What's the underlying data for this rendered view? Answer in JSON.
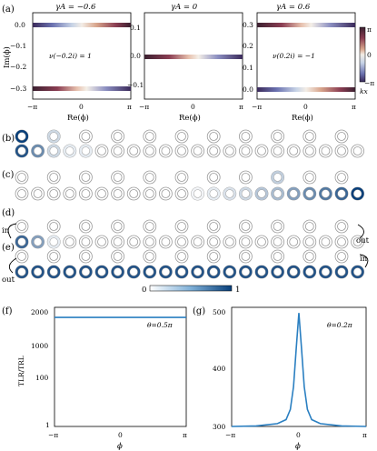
{
  "panel_labels": {
    "a": "(a)",
    "b": "(b)",
    "c": "(c)",
    "d": "(d)",
    "e": "(e)",
    "f": "(f)",
    "g": "(g)"
  },
  "panel_a": {
    "titles": [
      "γA = −0.6",
      "γA = 0",
      "γA = 0.6"
    ],
    "ylabel": "Im(ϕ)",
    "xlabel": "Re(ϕ)",
    "xticks": [
      "−π",
      "0",
      "π"
    ],
    "yticks_left": [
      "0.0",
      "−0.1",
      "−0.2",
      "−0.3"
    ],
    "yticks_mid": [
      "0.1",
      "0.0",
      "−0.1"
    ],
    "yticks_right": [
      "0.3",
      "0.2",
      "0.1",
      "0.0"
    ],
    "annot_left": "ν(−0.2i) = 1",
    "annot_right": "ν(0.2i) = −1",
    "cbar_ticks": [
      "π",
      "0",
      "−π"
    ],
    "cbar_label": "kx"
  },
  "panel_de": {
    "in": "in",
    "out": "out"
  },
  "colorbar_bottom": {
    "min": "0",
    "max": "1"
  },
  "panel_f": {
    "ylabel": "TLR/TRL",
    "yticks": [
      "2000",
      "1000",
      "100",
      "1"
    ],
    "xticks": [
      "−π",
      "0",
      "π"
    ],
    "xlabel": "ϕ",
    "annot": "θ=0.5π"
  },
  "panel_g": {
    "yticks": [
      "500",
      "400",
      "300"
    ],
    "xticks": [
      "−π",
      "0",
      "π"
    ],
    "xlabel": "ϕ",
    "annot": "θ=0.2π"
  },
  "chart_data": [
    {
      "type": "line",
      "title": "",
      "xlabel": "ϕ",
      "ylabel": "TLR/TRL",
      "x": [
        -3.1416,
        3.1416
      ],
      "series": [
        {
          "values": [
            1050,
            1050
          ]
        }
      ],
      "ylim": [
        1,
        2000
      ],
      "note": "constant 1050"
    },
    {
      "type": "line",
      "title": "",
      "xlabel": "ϕ",
      "ylabel": "",
      "x": [
        -3.1416,
        -2.0,
        -1.0,
        -0.6,
        -0.4,
        -0.25,
        -0.12,
        0,
        0.12,
        0.25,
        0.4,
        0.6,
        1.0,
        2.0,
        3.1416
      ],
      "series": [
        {
          "values": [
            300,
            301,
            305,
            312,
            330,
            370,
            440,
            500,
            440,
            370,
            330,
            312,
            305,
            301,
            300
          ]
        }
      ],
      "ylim": [
        300,
        510
      ]
    }
  ]
}
